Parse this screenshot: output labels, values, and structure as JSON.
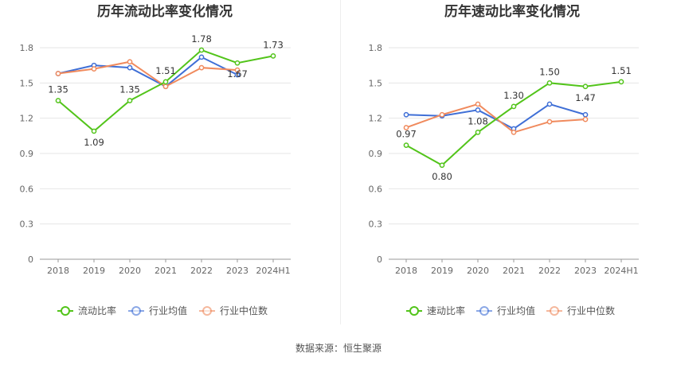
{
  "source": "数据来源：恒生聚源",
  "chart_data": [
    {
      "type": "line",
      "title": "历年流动比率变化情况",
      "categories": [
        "2018",
        "2019",
        "2020",
        "2021",
        "2022",
        "2023",
        "2024H1"
      ],
      "yticks": [
        "0",
        "0.3",
        "0.6",
        "0.9",
        "1.2",
        "1.5",
        "1.8"
      ],
      "ylim": [
        0,
        1.8
      ],
      "grid": true,
      "legend_position": "bottom",
      "series": [
        {
          "name": "流动比率",
          "color": "#52c41a",
          "values": [
            1.35,
            1.09,
            1.35,
            1.51,
            1.78,
            1.67,
            1.73
          ],
          "labels": [
            "1.35",
            "1.09",
            "1.35",
            "1.51",
            "1.78",
            "1.67",
            "1.73"
          ]
        },
        {
          "name": "行业均值",
          "color": "#3f6fd6",
          "values": [
            1.58,
            1.65,
            1.63,
            1.47,
            1.72,
            1.57,
            null
          ]
        },
        {
          "name": "行业中位数",
          "color": "#f08a5d",
          "values": [
            1.58,
            1.62,
            1.68,
            1.47,
            1.63,
            1.61,
            null
          ]
        }
      ]
    },
    {
      "type": "line",
      "title": "历年速动比率变化情况",
      "categories": [
        "2018",
        "2019",
        "2020",
        "2021",
        "2022",
        "2023",
        "2024H1"
      ],
      "yticks": [
        "0",
        "0.3",
        "0.6",
        "0.9",
        "1.2",
        "1.5",
        "1.8"
      ],
      "ylim": [
        0,
        1.8
      ],
      "grid": true,
      "legend_position": "bottom",
      "series": [
        {
          "name": "速动比率",
          "color": "#52c41a",
          "values": [
            0.97,
            0.8,
            1.08,
            1.3,
            1.5,
            1.47,
            1.51
          ],
          "labels": [
            "0.97",
            "0.80",
            "1.08",
            "1.30",
            "1.50",
            "1.47",
            "1.51"
          ]
        },
        {
          "name": "行业均值",
          "color": "#3f6fd6",
          "values": [
            1.23,
            1.22,
            1.27,
            1.11,
            1.32,
            1.23,
            null
          ]
        },
        {
          "name": "行业中位数",
          "color": "#f08a5d",
          "values": [
            1.12,
            1.23,
            1.32,
            1.08,
            1.17,
            1.19,
            null
          ]
        }
      ]
    }
  ]
}
